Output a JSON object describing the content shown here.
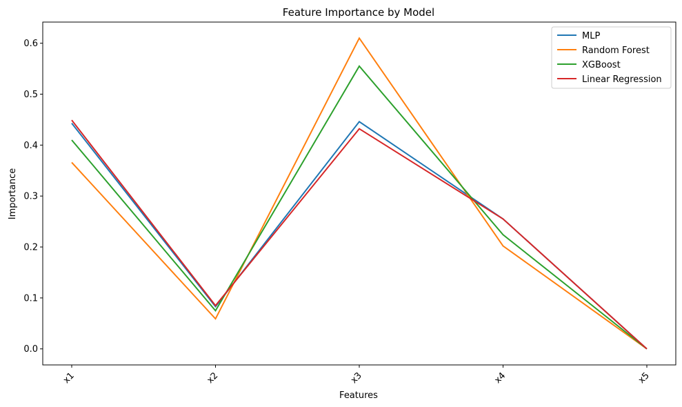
{
  "chart_data": {
    "type": "line",
    "title": "Feature Importance by Model",
    "xlabel": "Features",
    "ylabel": "Importance",
    "categories": [
      "x1",
      "x2",
      "x3",
      "x4",
      "x5"
    ],
    "ylim": [
      -0.0315,
      0.6415
    ],
    "yticks": [
      0.0,
      0.1,
      0.2,
      0.3,
      0.4,
      0.5,
      0.6
    ],
    "ytick_labels": [
      "0.0",
      "0.1",
      "0.2",
      "0.3",
      "0.4",
      "0.5",
      "0.6"
    ],
    "grid": false,
    "legend_position": "top-right",
    "series": [
      {
        "name": "MLP",
        "color": "#1f77b4",
        "values": [
          0.443,
          0.083,
          0.446,
          0.255,
          0.0
        ]
      },
      {
        "name": "Random Forest",
        "color": "#ff7f0e",
        "values": [
          0.366,
          0.059,
          0.61,
          0.202,
          0.0
        ]
      },
      {
        "name": "XGBoost",
        "color": "#2ca02c",
        "values": [
          0.41,
          0.075,
          0.555,
          0.224,
          0.0
        ]
      },
      {
        "name": "Linear Regression",
        "color": "#d62728",
        "values": [
          0.449,
          0.085,
          0.432,
          0.255,
          0.0
        ]
      }
    ]
  }
}
